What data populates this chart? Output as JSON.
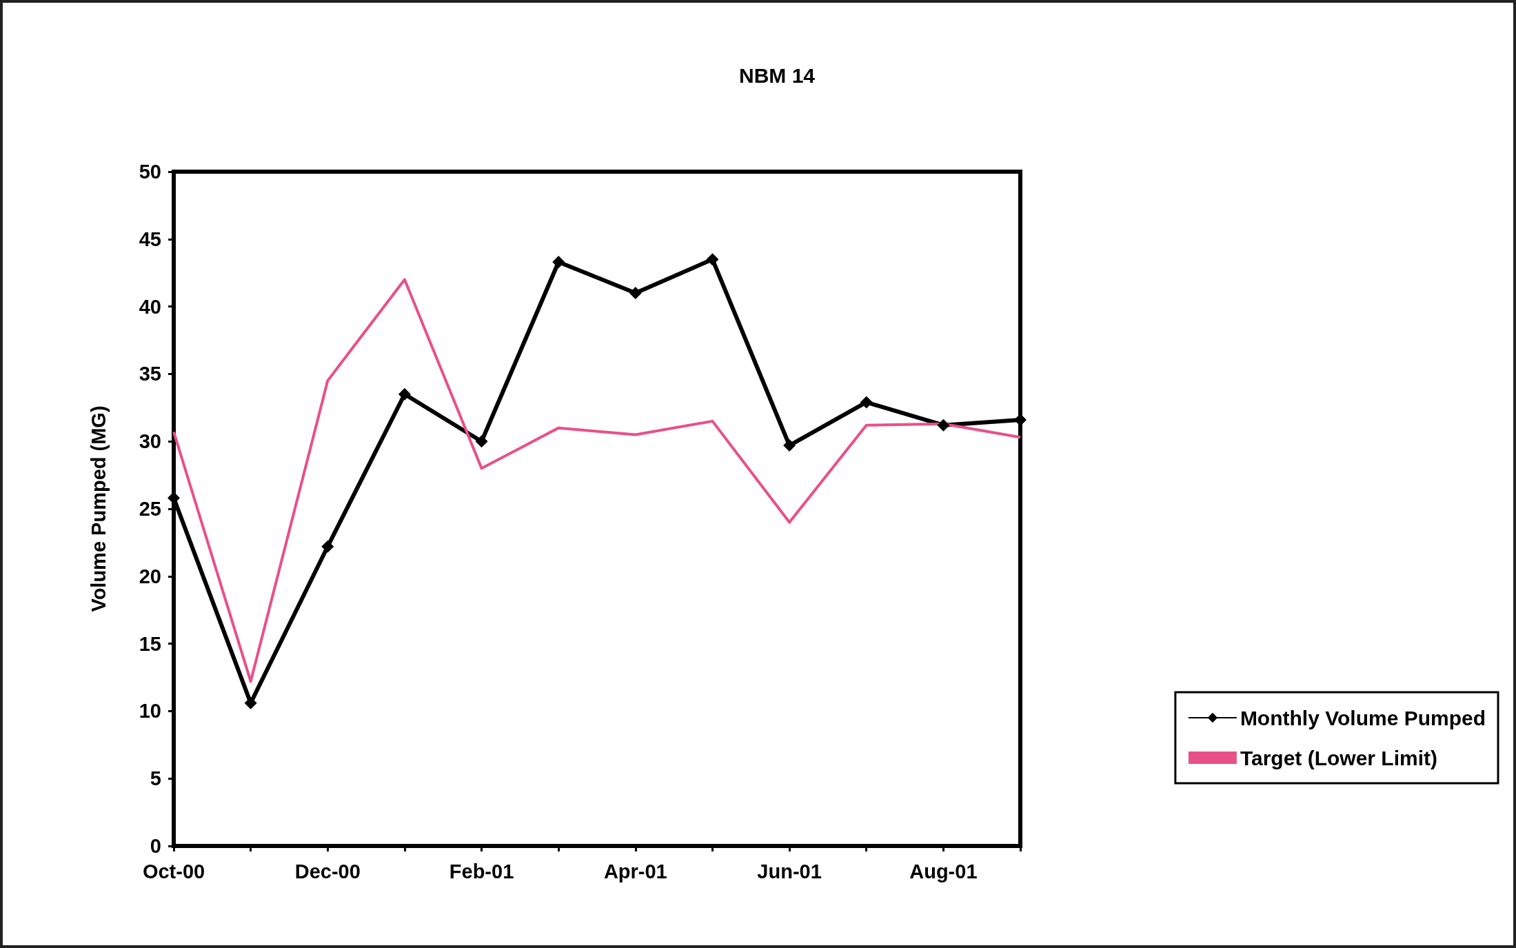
{
  "chart_data": {
    "type": "line",
    "title": "NBM 14",
    "ylabel": "Volume Pumped (MG)",
    "categories": [
      "Oct-00",
      null,
      "Dec-00",
      null,
      "Feb-01",
      null,
      "Apr-01",
      null,
      "Jun-01",
      null,
      "Aug-01",
      null
    ],
    "series": [
      {
        "name": "Monthly Volume Pumped",
        "color": "#000000",
        "marker": "diamond",
        "values": [
          25.8,
          10.6,
          22.2,
          33.5,
          30.0,
          43.3,
          41.0,
          43.5,
          29.7,
          32.9,
          31.2,
          31.6
        ]
      },
      {
        "name": "Target (Lower Limit)",
        "color": "#e8508a",
        "marker": "none",
        "values": [
          30.7,
          12.2,
          34.5,
          42.0,
          28.0,
          31.0,
          30.5,
          31.5,
          24.0,
          31.2,
          31.3,
          30.3
        ]
      }
    ],
    "ylim": [
      0,
      50
    ],
    "yticks": [
      0,
      5,
      10,
      15,
      20,
      25,
      30,
      35,
      40,
      45,
      50
    ],
    "grid": false,
    "legend": "right"
  }
}
